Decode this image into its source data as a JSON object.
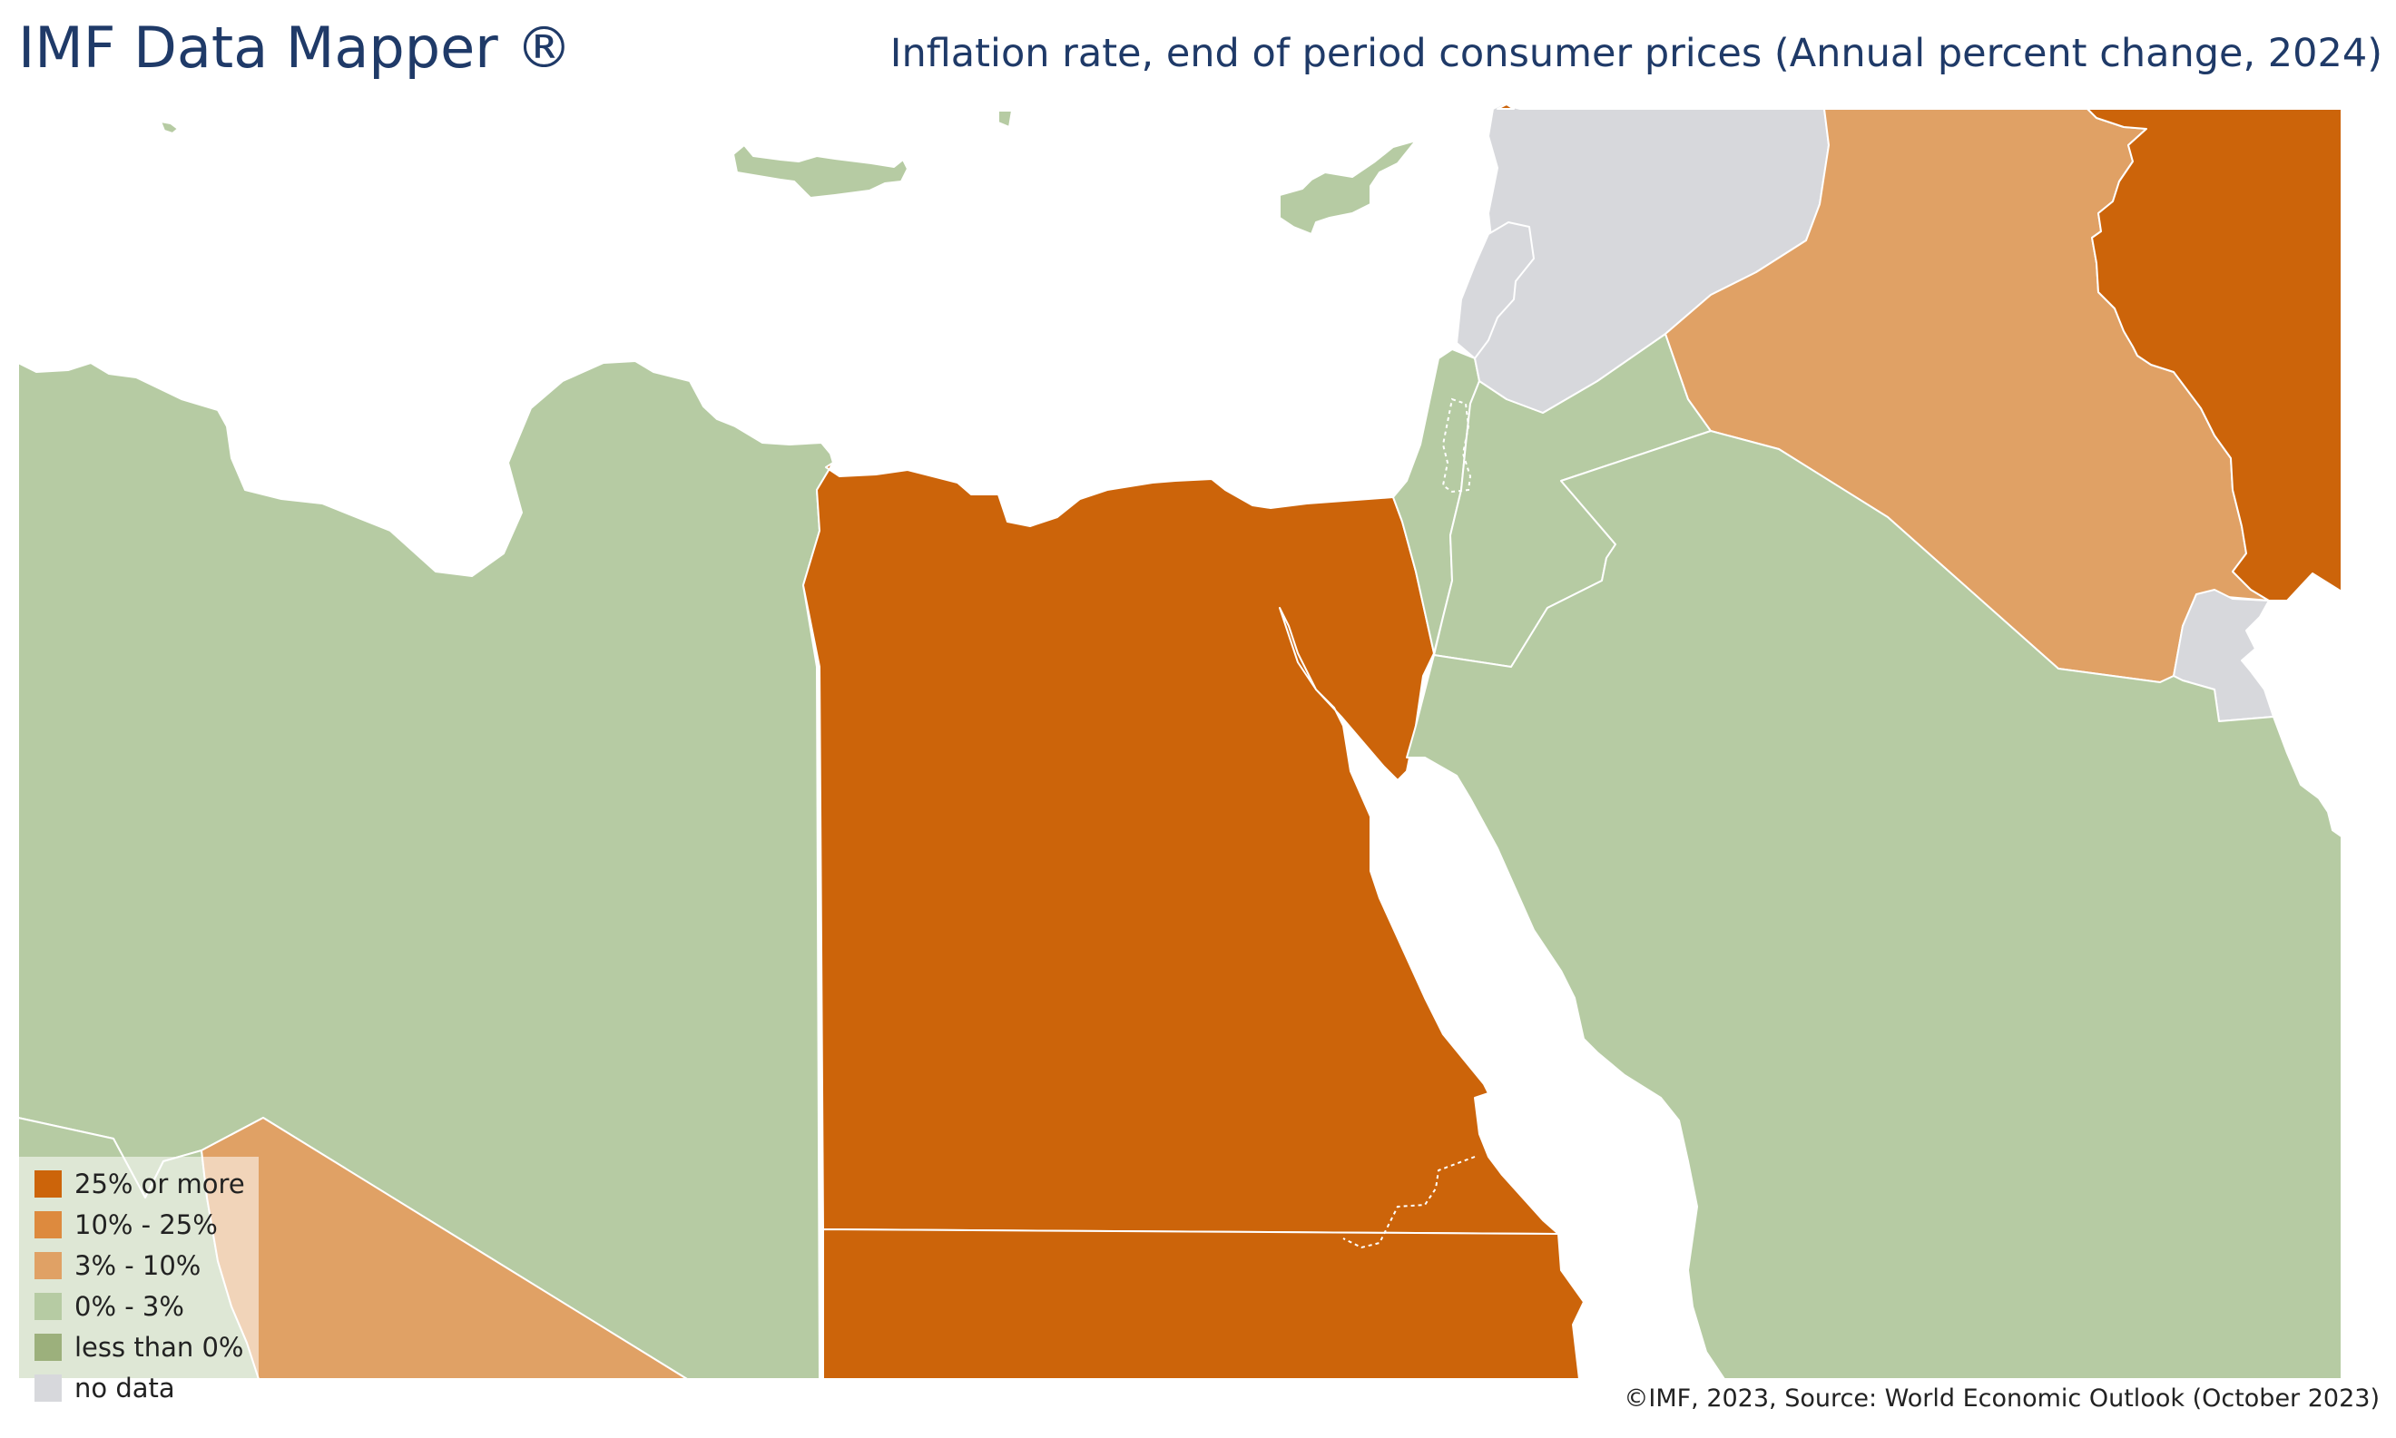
{
  "header": {
    "brand": "IMF Data Mapper ®",
    "title": "Inflation rate, end of period consumer prices (Annual percent change, 2024)"
  },
  "colors": {
    "c25": "#cc640a",
    "c10": "#dd8a3e",
    "c3": "#e0a165",
    "c0": "#b6cba3",
    "neg": "#9cb07c",
    "nodata": "#d7d8dc",
    "sea": "#ffffff",
    "title": "#1f3a68"
  },
  "legend": [
    {
      "label": "25% or more",
      "color": "#cc640a"
    },
    {
      "label": "10% - 25%",
      "color": "#dd8a3e"
    },
    {
      "label": "3% - 10%",
      "color": "#e0a165"
    },
    {
      "label": "0% - 3%",
      "color": "#b6cba3"
    },
    {
      "label": "less than 0%",
      "color": "#9cb07c"
    },
    {
      "label": "no data",
      "color": "#d7d8dc"
    }
  ],
  "source": "©IMF, 2023, Source: World Economic Outlook (October 2023)"
}
